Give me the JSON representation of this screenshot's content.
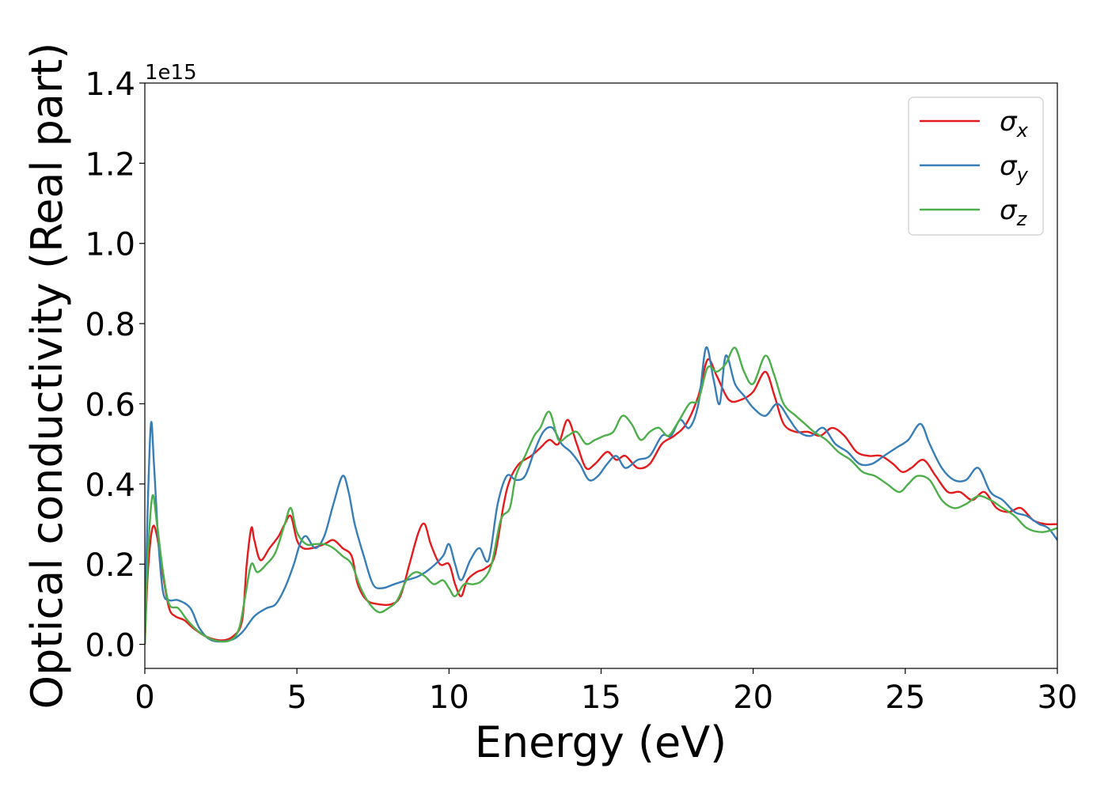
{
  "chart_data": {
    "type": "line",
    "title": "",
    "xlabel": "Energy (eV)",
    "ylabel": "Optical conductivity (Real part)",
    "y_offset_label": "1e15",
    "xlim": [
      0,
      30
    ],
    "ylim": [
      -0.06,
      1.4
    ],
    "x_ticks": [
      0,
      5,
      10,
      15,
      20,
      25,
      30
    ],
    "x_tick_labels": [
      "0",
      "5",
      "10",
      "15",
      "20",
      "25",
      "30"
    ],
    "y_ticks": [
      0.0,
      0.2,
      0.4,
      0.6,
      0.8,
      1.0,
      1.2,
      1.4
    ],
    "y_tick_labels": [
      "0.0",
      "0.2",
      "0.4",
      "0.6",
      "0.8",
      "1.0",
      "1.2",
      "1.4"
    ],
    "grid": false,
    "legend_position": "top-right",
    "series": [
      {
        "name": "σx",
        "name_base": "σ",
        "name_sub": "x",
        "color": "#e41a1c",
        "points": [
          [
            0,
            0
          ],
          [
            0.1,
            0.18
          ],
          [
            0.25,
            0.29
          ],
          [
            0.4,
            0.27
          ],
          [
            0.6,
            0.17
          ],
          [
            0.8,
            0.09
          ],
          [
            1.0,
            0.07
          ],
          [
            1.3,
            0.06
          ],
          [
            1.6,
            0.04
          ],
          [
            2.0,
            0.02
          ],
          [
            2.5,
            0.01
          ],
          [
            2.9,
            0.02
          ],
          [
            3.2,
            0.06
          ],
          [
            3.35,
            0.2
          ],
          [
            3.5,
            0.29
          ],
          [
            3.6,
            0.26
          ],
          [
            3.8,
            0.21
          ],
          [
            4.1,
            0.24
          ],
          [
            4.4,
            0.27
          ],
          [
            4.6,
            0.3
          ],
          [
            4.8,
            0.32
          ],
          [
            5.0,
            0.26
          ],
          [
            5.2,
            0.24
          ],
          [
            5.5,
            0.24
          ],
          [
            5.9,
            0.25
          ],
          [
            6.2,
            0.26
          ],
          [
            6.5,
            0.24
          ],
          [
            6.8,
            0.22
          ],
          [
            7.0,
            0.15
          ],
          [
            7.3,
            0.11
          ],
          [
            7.7,
            0.1
          ],
          [
            8.1,
            0.1
          ],
          [
            8.4,
            0.12
          ],
          [
            8.7,
            0.2
          ],
          [
            9.0,
            0.28
          ],
          [
            9.2,
            0.3
          ],
          [
            9.4,
            0.25
          ],
          [
            9.7,
            0.2
          ],
          [
            10.0,
            0.2
          ],
          [
            10.2,
            0.15
          ],
          [
            10.4,
            0.12
          ],
          [
            10.6,
            0.16
          ],
          [
            10.9,
            0.18
          ],
          [
            11.2,
            0.19
          ],
          [
            11.5,
            0.22
          ],
          [
            11.8,
            0.35
          ],
          [
            12.0,
            0.41
          ],
          [
            12.3,
            0.45
          ],
          [
            12.7,
            0.47
          ],
          [
            13.0,
            0.49
          ],
          [
            13.3,
            0.51
          ],
          [
            13.6,
            0.5
          ],
          [
            13.9,
            0.56
          ],
          [
            14.2,
            0.5
          ],
          [
            14.5,
            0.44
          ],
          [
            14.8,
            0.45
          ],
          [
            15.2,
            0.48
          ],
          [
            15.5,
            0.46
          ],
          [
            15.8,
            0.47
          ],
          [
            16.2,
            0.44
          ],
          [
            16.6,
            0.45
          ],
          [
            17.0,
            0.5
          ],
          [
            17.4,
            0.52
          ],
          [
            17.8,
            0.55
          ],
          [
            18.2,
            0.62
          ],
          [
            18.5,
            0.71
          ],
          [
            18.8,
            0.67
          ],
          [
            19.2,
            0.61
          ],
          [
            19.6,
            0.61
          ],
          [
            20.0,
            0.63
          ],
          [
            20.4,
            0.68
          ],
          [
            20.7,
            0.62
          ],
          [
            21.0,
            0.55
          ],
          [
            21.4,
            0.53
          ],
          [
            21.8,
            0.53
          ],
          [
            22.2,
            0.52
          ],
          [
            22.6,
            0.54
          ],
          [
            23.0,
            0.52
          ],
          [
            23.4,
            0.48
          ],
          [
            23.8,
            0.47
          ],
          [
            24.2,
            0.47
          ],
          [
            24.6,
            0.45
          ],
          [
            24.9,
            0.43
          ],
          [
            25.2,
            0.44
          ],
          [
            25.6,
            0.46
          ],
          [
            26.0,
            0.42
          ],
          [
            26.4,
            0.38
          ],
          [
            26.8,
            0.38
          ],
          [
            27.2,
            0.36
          ],
          [
            27.6,
            0.38
          ],
          [
            28.0,
            0.34
          ],
          [
            28.4,
            0.33
          ],
          [
            28.8,
            0.34
          ],
          [
            29.2,
            0.31
          ],
          [
            29.6,
            0.3
          ],
          [
            30.0,
            0.3
          ]
        ]
      },
      {
        "name": "σy",
        "name_base": "σ",
        "name_sub": "y",
        "color": "#377eb8",
        "points": [
          [
            0,
            0
          ],
          [
            0.08,
            0.3
          ],
          [
            0.2,
            0.55
          ],
          [
            0.3,
            0.45
          ],
          [
            0.45,
            0.25
          ],
          [
            0.6,
            0.13
          ],
          [
            0.8,
            0.11
          ],
          [
            1.1,
            0.11
          ],
          [
            1.5,
            0.09
          ],
          [
            1.8,
            0.04
          ],
          [
            2.2,
            0.01
          ],
          [
            2.8,
            0.01
          ],
          [
            3.2,
            0.03
          ],
          [
            3.6,
            0.07
          ],
          [
            4.0,
            0.09
          ],
          [
            4.3,
            0.1
          ],
          [
            4.6,
            0.14
          ],
          [
            4.9,
            0.2
          ],
          [
            5.1,
            0.25
          ],
          [
            5.3,
            0.27
          ],
          [
            5.6,
            0.24
          ],
          [
            5.9,
            0.27
          ],
          [
            6.2,
            0.35
          ],
          [
            6.5,
            0.42
          ],
          [
            6.7,
            0.38
          ],
          [
            6.9,
            0.3
          ],
          [
            7.2,
            0.22
          ],
          [
            7.5,
            0.15
          ],
          [
            7.8,
            0.14
          ],
          [
            8.2,
            0.15
          ],
          [
            8.6,
            0.16
          ],
          [
            9.0,
            0.17
          ],
          [
            9.4,
            0.19
          ],
          [
            9.8,
            0.22
          ],
          [
            10.0,
            0.25
          ],
          [
            10.2,
            0.2
          ],
          [
            10.4,
            0.16
          ],
          [
            10.7,
            0.21
          ],
          [
            11.0,
            0.24
          ],
          [
            11.3,
            0.21
          ],
          [
            11.6,
            0.35
          ],
          [
            11.9,
            0.42
          ],
          [
            12.2,
            0.41
          ],
          [
            12.5,
            0.42
          ],
          [
            12.8,
            0.48
          ],
          [
            13.1,
            0.53
          ],
          [
            13.4,
            0.54
          ],
          [
            13.7,
            0.5
          ],
          [
            14.0,
            0.48
          ],
          [
            14.3,
            0.45
          ],
          [
            14.6,
            0.41
          ],
          [
            14.9,
            0.42
          ],
          [
            15.2,
            0.45
          ],
          [
            15.5,
            0.47
          ],
          [
            15.8,
            0.44
          ],
          [
            16.2,
            0.46
          ],
          [
            16.6,
            0.47
          ],
          [
            17.0,
            0.52
          ],
          [
            17.3,
            0.52
          ],
          [
            17.6,
            0.56
          ],
          [
            17.9,
            0.54
          ],
          [
            18.2,
            0.6
          ],
          [
            18.45,
            0.74
          ],
          [
            18.7,
            0.66
          ],
          [
            18.9,
            0.6
          ],
          [
            19.1,
            0.72
          ],
          [
            19.4,
            0.65
          ],
          [
            19.7,
            0.62
          ],
          [
            20.0,
            0.59
          ],
          [
            20.4,
            0.57
          ],
          [
            20.8,
            0.6
          ],
          [
            21.2,
            0.56
          ],
          [
            21.5,
            0.53
          ],
          [
            21.9,
            0.52
          ],
          [
            22.3,
            0.54
          ],
          [
            22.7,
            0.5
          ],
          [
            23.1,
            0.48
          ],
          [
            23.5,
            0.45
          ],
          [
            23.9,
            0.45
          ],
          [
            24.3,
            0.47
          ],
          [
            24.7,
            0.49
          ],
          [
            25.1,
            0.51
          ],
          [
            25.5,
            0.55
          ],
          [
            25.8,
            0.5
          ],
          [
            26.2,
            0.44
          ],
          [
            26.6,
            0.41
          ],
          [
            27.0,
            0.41
          ],
          [
            27.4,
            0.44
          ],
          [
            27.8,
            0.38
          ],
          [
            28.2,
            0.36
          ],
          [
            28.6,
            0.33
          ],
          [
            29.0,
            0.32
          ],
          [
            29.4,
            0.3
          ],
          [
            29.7,
            0.29
          ],
          [
            30.0,
            0.26
          ]
        ]
      },
      {
        "name": "σz",
        "name_base": "σ",
        "name_sub": "z",
        "color": "#4daf4a",
        "points": [
          [
            0,
            0
          ],
          [
            0.1,
            0.22
          ],
          [
            0.25,
            0.37
          ],
          [
            0.4,
            0.3
          ],
          [
            0.6,
            0.18
          ],
          [
            0.8,
            0.1
          ],
          [
            1.1,
            0.09
          ],
          [
            1.4,
            0.06
          ],
          [
            1.8,
            0.03
          ],
          [
            2.3,
            0.01
          ],
          [
            2.8,
            0.01
          ],
          [
            3.1,
            0.04
          ],
          [
            3.3,
            0.12
          ],
          [
            3.5,
            0.2
          ],
          [
            3.7,
            0.18
          ],
          [
            4.0,
            0.2
          ],
          [
            4.3,
            0.23
          ],
          [
            4.6,
            0.3
          ],
          [
            4.8,
            0.34
          ],
          [
            5.0,
            0.28
          ],
          [
            5.3,
            0.25
          ],
          [
            5.6,
            0.25
          ],
          [
            5.9,
            0.25
          ],
          [
            6.2,
            0.24
          ],
          [
            6.5,
            0.22
          ],
          [
            6.8,
            0.2
          ],
          [
            7.1,
            0.14
          ],
          [
            7.4,
            0.1
          ],
          [
            7.7,
            0.08
          ],
          [
            8.0,
            0.09
          ],
          [
            8.3,
            0.11
          ],
          [
            8.6,
            0.16
          ],
          [
            8.9,
            0.18
          ],
          [
            9.2,
            0.17
          ],
          [
            9.5,
            0.15
          ],
          [
            9.8,
            0.16
          ],
          [
            10.0,
            0.14
          ],
          [
            10.2,
            0.12
          ],
          [
            10.5,
            0.15
          ],
          [
            10.8,
            0.15
          ],
          [
            11.1,
            0.16
          ],
          [
            11.4,
            0.2
          ],
          [
            11.7,
            0.31
          ],
          [
            12.0,
            0.34
          ],
          [
            12.2,
            0.42
          ],
          [
            12.5,
            0.47
          ],
          [
            12.8,
            0.52
          ],
          [
            13.0,
            0.54
          ],
          [
            13.3,
            0.58
          ],
          [
            13.6,
            0.51
          ],
          [
            13.9,
            0.52
          ],
          [
            14.2,
            0.53
          ],
          [
            14.5,
            0.5
          ],
          [
            14.8,
            0.51
          ],
          [
            15.1,
            0.52
          ],
          [
            15.4,
            0.53
          ],
          [
            15.7,
            0.57
          ],
          [
            16.0,
            0.55
          ],
          [
            16.3,
            0.51
          ],
          [
            16.6,
            0.53
          ],
          [
            16.9,
            0.54
          ],
          [
            17.2,
            0.52
          ],
          [
            17.5,
            0.55
          ],
          [
            17.9,
            0.6
          ],
          [
            18.2,
            0.61
          ],
          [
            18.5,
            0.69
          ],
          [
            18.8,
            0.68
          ],
          [
            19.1,
            0.7
          ],
          [
            19.4,
            0.74
          ],
          [
            19.7,
            0.68
          ],
          [
            20.0,
            0.65
          ],
          [
            20.4,
            0.72
          ],
          [
            20.7,
            0.67
          ],
          [
            21.0,
            0.6
          ],
          [
            21.4,
            0.57
          ],
          [
            21.7,
            0.55
          ],
          [
            22.0,
            0.53
          ],
          [
            22.4,
            0.51
          ],
          [
            22.8,
            0.48
          ],
          [
            23.2,
            0.46
          ],
          [
            23.6,
            0.43
          ],
          [
            24.0,
            0.42
          ],
          [
            24.4,
            0.4
          ],
          [
            24.8,
            0.38
          ],
          [
            25.1,
            0.4
          ],
          [
            25.4,
            0.42
          ],
          [
            25.8,
            0.41
          ],
          [
            26.2,
            0.36
          ],
          [
            26.6,
            0.34
          ],
          [
            27.0,
            0.35
          ],
          [
            27.4,
            0.37
          ],
          [
            27.8,
            0.36
          ],
          [
            28.2,
            0.34
          ],
          [
            28.6,
            0.32
          ],
          [
            29.0,
            0.29
          ],
          [
            29.5,
            0.28
          ],
          [
            30.0,
            0.29
          ]
        ]
      }
    ]
  }
}
